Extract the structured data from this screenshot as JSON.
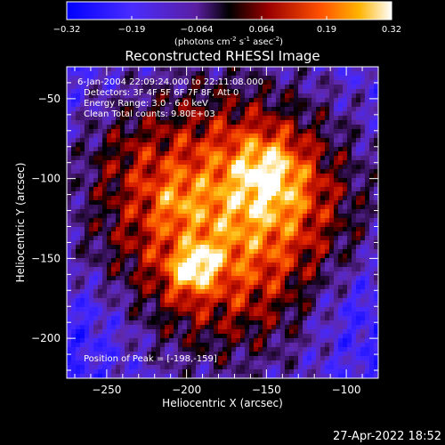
{
  "colorbar": {
    "ticks": [
      "-0.32",
      "-0.19",
      "-0.064",
      "0.064",
      "0.19",
      "0.32"
    ],
    "label_main": "(photons cm",
    "label_exp1": "-2",
    "label_mid": " s",
    "label_exp2": "-1",
    "label_end": " asec",
    "label_exp3": "-2",
    "label_close": ")"
  },
  "chart_data": {
    "type": "heatmap",
    "title": "Reconstructed RHESSI Image",
    "xlabel": "Heliocentric X (arcsec)",
    "ylabel": "Heliocentric Y (arcsec)",
    "xlim": [
      -275,
      -80
    ],
    "ylim": [
      -225,
      -30
    ],
    "xticks": [
      -250,
      -200,
      -150,
      -100
    ],
    "yticks": [
      -50,
      -100,
      -150,
      -200
    ],
    "xtick_labels": [
      "−250",
      "−200",
      "−150",
      "−100"
    ],
    "ytick_labels": [
      "−50",
      "−100",
      "−150",
      "−200"
    ],
    "value_range": [
      -0.32,
      0.32
    ],
    "peak_position": [
      -198,
      -159
    ],
    "annotations": [
      "6-Jan-2004 22:09:24.000 to 22:11:08.000",
      "Detectors: 3F 4F 5F 6F 7F 8F, Att 0",
      "Energy Range: 3.0 - 6.0 keV",
      "Clean     Total counts: 9.80E+03"
    ],
    "peak_label": "Position of Peak = [-198,-159]"
  },
  "footer_date": "27-Apr-2022 18:52"
}
